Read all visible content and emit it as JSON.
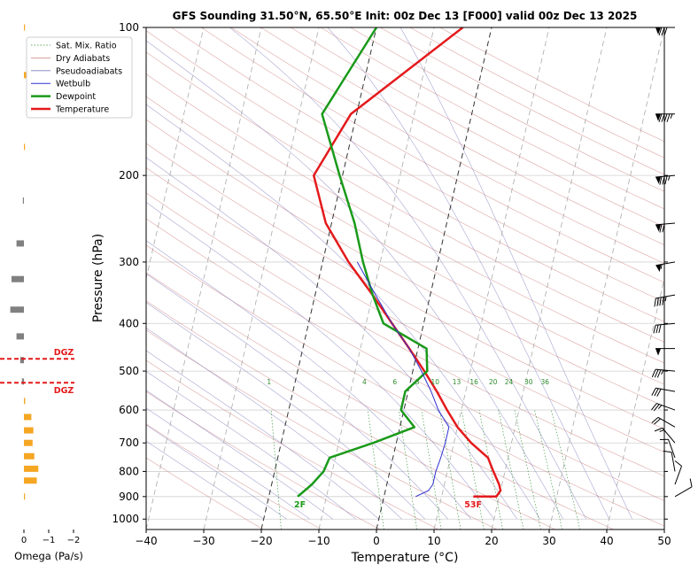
{
  "chart_data": {
    "type": "skew-t",
    "title": "GFS Sounding 31.50°N, 65.50°E Init: 00z Dec 13 [F000] valid 00z Dec 13 2025",
    "xlabel": "Temperature (°C)",
    "ylabel": "Pressure (hPa)",
    "xlim": [
      -40,
      50
    ],
    "ylim": [
      1050,
      100
    ],
    "y_scale": "log",
    "x_ticks": [
      "−40",
      "−30",
      "−20",
      "−10",
      "0",
      "10",
      "20",
      "30",
      "40",
      "50"
    ],
    "y_ticks": [
      100,
      200,
      300,
      400,
      500,
      600,
      700,
      800,
      900,
      1000
    ],
    "grid": true,
    "legend_position": "top-left",
    "legend": [
      "Sat. Mix. Ratio",
      "Dry Adiabats",
      "Pseudoadiabats",
      "Wetbulb",
      "Dewpoint",
      "Temperature"
    ],
    "colors": {
      "temperature": "#e41a1c",
      "dewpoint": "#1a9a1a",
      "wetbulb": "#3030d0",
      "mixing_ratio": "#2e8b2e",
      "dry_adiabat": "#d08080",
      "moist_adiabat": "#8080c0",
      "isotherm": "#888888",
      "dgz": "#e41a1c",
      "omega_pos": "#f5a623",
      "omega_neg": "#808080"
    },
    "mixing_ratio_labels": [
      "1",
      "4",
      "6",
      "8",
      "10",
      "13",
      "16",
      "20",
      "24",
      "30",
      "36"
    ],
    "mixing_ratio_values": [
      1,
      4,
      6,
      8,
      10,
      13,
      16,
      20,
      24,
      30,
      36
    ],
    "series": [
      {
        "name": "Temperature",
        "points": [
          [
            900,
            15.5
          ],
          [
            900,
            19.5
          ],
          [
            875,
            20
          ],
          [
            850,
            19.5
          ],
          [
            800,
            18
          ],
          [
            750,
            16.5
          ],
          [
            700,
            13
          ],
          [
            650,
            10
          ],
          [
            600,
            7.5
          ],
          [
            550,
            5
          ],
          [
            500,
            2
          ],
          [
            450,
            -1.5
          ],
          [
            400,
            -5.5
          ],
          [
            350,
            -10
          ],
          [
            300,
            -15.5
          ],
          [
            250,
            -21
          ],
          [
            200,
            -25
          ],
          [
            150,
            -21
          ],
          [
            100,
            -5
          ]
        ]
      },
      {
        "name": "Dewpoint",
        "points": [
          [
            900,
            -15
          ],
          [
            875,
            -14
          ],
          [
            850,
            -13
          ],
          [
            800,
            -11.5
          ],
          [
            750,
            -11
          ],
          [
            700,
            -4
          ],
          [
            650,
            2.5
          ],
          [
            600,
            -0.5
          ],
          [
            550,
            -0.5
          ],
          [
            500,
            2.5
          ],
          [
            450,
            1.5
          ],
          [
            400,
            -7
          ],
          [
            350,
            -10
          ],
          [
            300,
            -13
          ],
          [
            250,
            -16
          ],
          [
            200,
            -20.5
          ],
          [
            150,
            -26
          ],
          [
            100,
            -20
          ]
        ]
      },
      {
        "name": "Wetbulb",
        "points": [
          [
            900,
            5.5
          ],
          [
            875,
            7.5
          ],
          [
            850,
            8
          ],
          [
            800,
            8
          ],
          [
            750,
            8.3
          ],
          [
            700,
            8.5
          ],
          [
            650,
            8.5
          ],
          [
            600,
            6
          ],
          [
            550,
            4
          ],
          [
            500,
            1.5
          ],
          [
            450,
            -1.5
          ],
          [
            400,
            -5.5
          ],
          [
            350,
            -9.5
          ],
          [
            300,
            -14
          ]
        ]
      }
    ],
    "surface_labels": {
      "temperature": "53F",
      "dewpoint": "2F"
    },
    "dgz": {
      "label": "DGZ",
      "bounds": [
        -12,
        -17
      ]
    },
    "omega": {
      "xlabel": "Omega (Pa/s)",
      "ticks": [
        "0",
        "−1",
        "−2"
      ],
      "values": [
        {
          "p": 100,
          "w": 0.02
        },
        {
          "p": 125,
          "w": 0.15
        },
        {
          "p": 175,
          "w": 0.02
        },
        {
          "p": 225,
          "w": -0.02
        },
        {
          "p": 275,
          "w": -0.3
        },
        {
          "p": 325,
          "w": -0.5
        },
        {
          "p": 375,
          "w": -0.55
        },
        {
          "p": 425,
          "w": -0.3
        },
        {
          "p": 475,
          "w": -0.15
        },
        {
          "p": 525,
          "w": -0.08
        },
        {
          "p": 575,
          "w": 0.05
        },
        {
          "p": 620,
          "w": 0.3
        },
        {
          "p": 660,
          "w": 0.38
        },
        {
          "p": 700,
          "w": 0.35
        },
        {
          "p": 745,
          "w": 0.42
        },
        {
          "p": 790,
          "w": 0.58
        },
        {
          "p": 835,
          "w": 0.52
        },
        {
          "p": 900,
          "w": 0.02
        }
      ]
    },
    "winds": [
      {
        "p": 100,
        "dir": 270,
        "spd": 80
      },
      {
        "p": 150,
        "dir": 270,
        "spd": 95
      },
      {
        "p": 200,
        "dir": 265,
        "spd": 85
      },
      {
        "p": 250,
        "dir": 265,
        "spd": 70
      },
      {
        "p": 300,
        "dir": 260,
        "spd": 55
      },
      {
        "p": 350,
        "dir": 260,
        "spd": 45
      },
      {
        "p": 400,
        "dir": 265,
        "spd": 30
      },
      {
        "p": 450,
        "dir": 270,
        "spd": 50
      },
      {
        "p": 500,
        "dir": 275,
        "spd": 35
      },
      {
        "p": 550,
        "dir": 280,
        "spd": 30
      },
      {
        "p": 600,
        "dir": 290,
        "spd": 25
      },
      {
        "p": 650,
        "dir": 300,
        "spd": 20
      },
      {
        "p": 700,
        "dir": 320,
        "spd": 15
      },
      {
        "p": 750,
        "dir": 340,
        "spd": 10
      },
      {
        "p": 800,
        "dir": 350,
        "spd": 10
      },
      {
        "p": 850,
        "dir": 20,
        "spd": 10
      },
      {
        "p": 900,
        "dir": 60,
        "spd": 10
      }
    ]
  }
}
